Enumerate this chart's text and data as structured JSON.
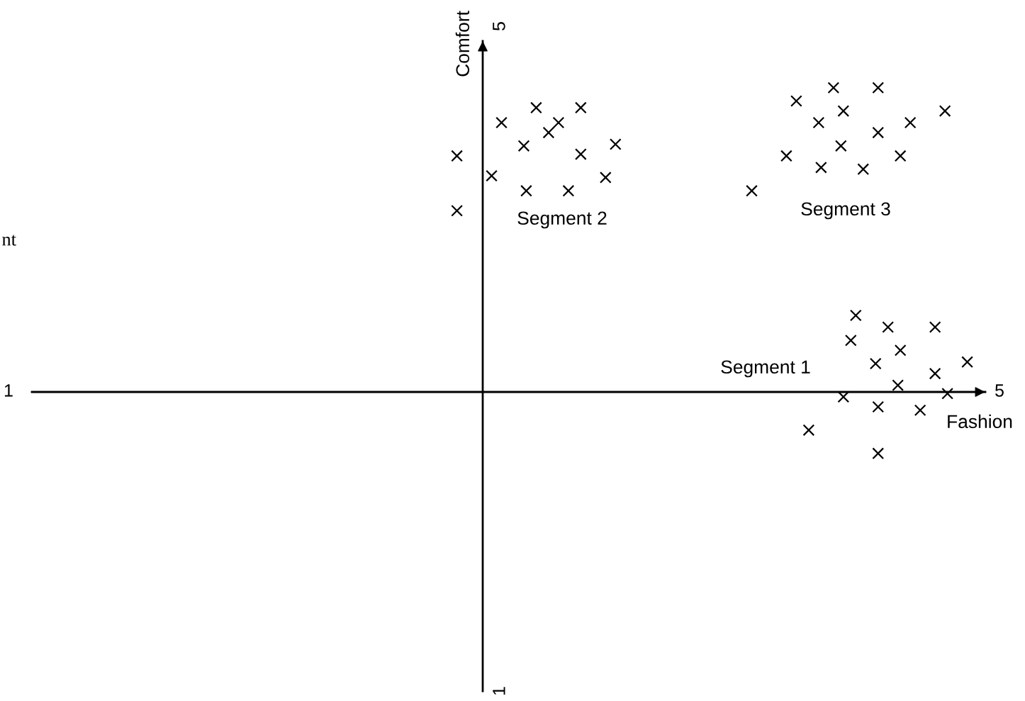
{
  "chart_data": {
    "type": "scatter",
    "xlabel": "Fashion",
    "ylabel": "Comfort",
    "xlim": [
      1,
      5
    ],
    "ylim": [
      1,
      5
    ],
    "xticks": [
      1,
      5
    ],
    "yticks": [
      1,
      5
    ],
    "marker": "cross",
    "annotations": [
      "Segment 2",
      "Segment 3",
      "Segment 1",
      "nt"
    ],
    "series": [
      {
        "color": "#000000",
        "x": [
          2.81,
          2.81,
          2.99,
          3.13,
          3.31,
          3.08,
          3.18,
          3.22,
          3.45,
          3.31,
          2.95,
          3.09,
          3.26,
          3.41,
          4.18,
          4.33,
          4.51,
          4.37,
          4.27,
          4.64,
          4.78,
          4.51,
          4.36,
          4.14,
          4.28,
          4.45,
          4.6,
          4.0,
          4.42,
          4.55,
          4.74,
          4.4,
          4.6,
          4.5,
          4.74,
          4.87,
          4.59,
          4.37,
          4.51,
          4.68,
          4.79,
          4.23,
          4.51
        ],
        "values": [
          4.22,
          3.89,
          4.42,
          4.51,
          4.51,
          4.28,
          4.36,
          4.42,
          4.29,
          4.23,
          4.1,
          4.01,
          4.01,
          4.09,
          4.55,
          4.63,
          4.63,
          4.49,
          4.42,
          4.42,
          4.49,
          4.36,
          4.28,
          4.22,
          4.15,
          4.14,
          4.22,
          4.01,
          3.26,
          3.19,
          3.19,
          3.11,
          3.05,
          2.97,
          2.91,
          2.98,
          2.84,
          2.77,
          2.71,
          2.69,
          2.79,
          2.57,
          2.43
        ]
      }
    ]
  }
}
